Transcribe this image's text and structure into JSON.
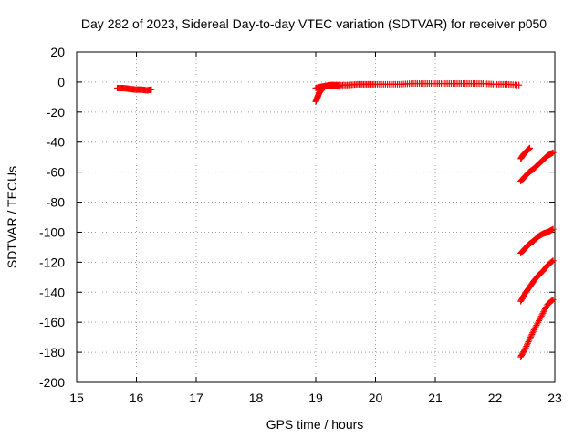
{
  "chart_data": {
    "type": "scatter",
    "title": "Day 282 of 2023, Sidereal Day-to-day VTEC variation (SDTVAR) for receiver p050",
    "xlabel": "GPS time / hours",
    "ylabel": "SDTVAR / TECUs",
    "xlim": [
      15,
      23
    ],
    "ylim": [
      -200,
      20
    ],
    "xticks": [
      15,
      16,
      17,
      18,
      19,
      20,
      21,
      22,
      23
    ],
    "yticks": [
      20,
      0,
      -20,
      -40,
      -60,
      -80,
      -100,
      -120,
      -140,
      -160,
      -180,
      -200
    ],
    "grid": true,
    "marker": "plus",
    "point_color": "#ff0000",
    "series": [
      {
        "points": [
          [
            15.68,
            -4
          ],
          [
            15.78,
            -4
          ],
          [
            15.88,
            -4.5
          ],
          [
            15.98,
            -5
          ],
          [
            16.08,
            -5
          ],
          [
            16.18,
            -5.5
          ],
          [
            16.25,
            -5
          ]
        ]
      },
      {
        "points": [
          [
            19.0,
            -13
          ],
          [
            19.03,
            -10
          ],
          [
            19.06,
            -7
          ],
          [
            19.1,
            -5
          ],
          [
            19.15,
            -3
          ],
          [
            19.22,
            -2
          ],
          [
            19.3,
            -2
          ],
          [
            19.4,
            -2
          ],
          [
            19.55,
            -2
          ],
          [
            19.7,
            -1.5
          ],
          [
            19.85,
            -1.5
          ],
          [
            20.0,
            -1.5
          ],
          [
            20.2,
            -1.5
          ],
          [
            20.4,
            -1.5
          ],
          [
            20.6,
            -1
          ],
          [
            20.8,
            -1
          ],
          [
            21.0,
            -1
          ],
          [
            21.2,
            -1
          ],
          [
            21.4,
            -1
          ],
          [
            21.6,
            -1
          ],
          [
            21.8,
            -1
          ],
          [
            22.0,
            -1.5
          ],
          [
            22.2,
            -1.5
          ],
          [
            22.4,
            -2
          ]
        ]
      },
      {
        "points": [
          [
            19.0,
            -4
          ],
          [
            19.1,
            -3
          ],
          [
            19.2,
            -2.5
          ],
          [
            19.3,
            -2.5
          ],
          [
            19.4,
            -3
          ]
        ]
      },
      {
        "points": [
          [
            22.43,
            -51
          ],
          [
            22.48,
            -48
          ],
          [
            22.53,
            -46
          ],
          [
            22.58,
            -44
          ]
        ]
      },
      {
        "points": [
          [
            22.43,
            -66
          ],
          [
            22.5,
            -63
          ],
          [
            22.57,
            -60
          ],
          [
            22.64,
            -58
          ],
          [
            22.72,
            -55
          ],
          [
            22.8,
            -52
          ],
          [
            22.88,
            -49
          ],
          [
            22.97,
            -47
          ]
        ]
      },
      {
        "points": [
          [
            22.43,
            -114
          ],
          [
            22.5,
            -111
          ],
          [
            22.57,
            -108
          ],
          [
            22.64,
            -106
          ],
          [
            22.72,
            -103
          ],
          [
            22.8,
            -101
          ],
          [
            22.88,
            -100
          ],
          [
            22.97,
            -98
          ]
        ]
      },
      {
        "points": [
          [
            22.43,
            -146
          ],
          [
            22.5,
            -141
          ],
          [
            22.57,
            -137
          ],
          [
            22.64,
            -133
          ],
          [
            22.72,
            -129
          ],
          [
            22.8,
            -126
          ],
          [
            22.88,
            -122
          ],
          [
            22.97,
            -119
          ]
        ]
      },
      {
        "points": [
          [
            22.43,
            -183
          ],
          [
            22.5,
            -178
          ],
          [
            22.57,
            -172
          ],
          [
            22.64,
            -166
          ],
          [
            22.72,
            -160
          ],
          [
            22.8,
            -154
          ],
          [
            22.88,
            -148
          ],
          [
            22.97,
            -145
          ]
        ]
      }
    ]
  }
}
